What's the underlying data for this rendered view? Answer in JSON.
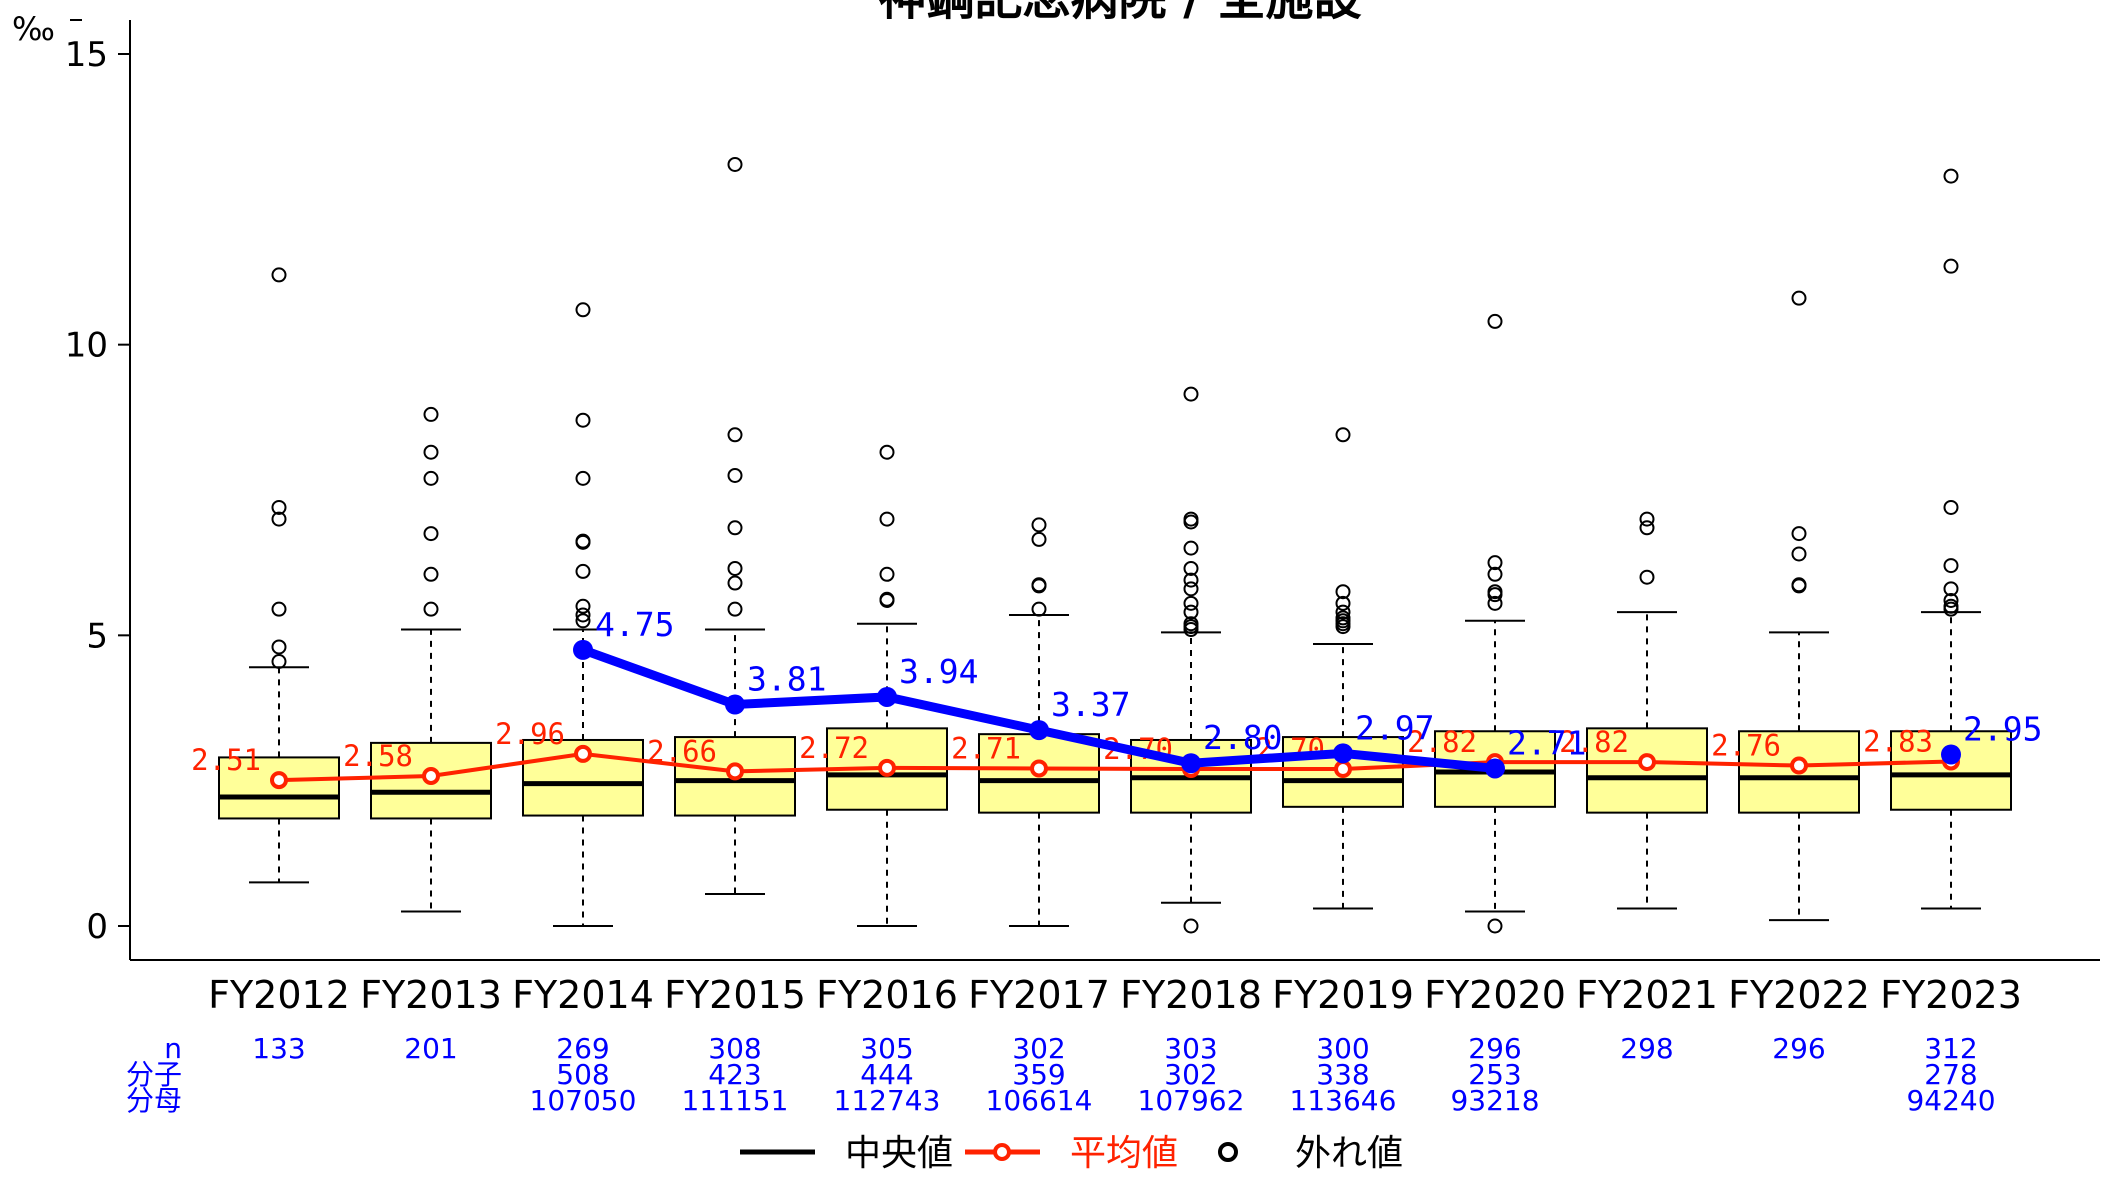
{
  "chart_data": {
    "type": "box",
    "title": "神鋼記念病院 / 全施設",
    "ylabel": "‰",
    "ylim": [
      -0.6,
      15.6
    ],
    "yticks": [
      0,
      5,
      10,
      15
    ],
    "categories": [
      "FY2012",
      "FY2013",
      "FY2014",
      "FY2015",
      "FY2016",
      "FY2017",
      "FY2018",
      "FY2019",
      "FY2020",
      "FY2021",
      "FY2022",
      "FY2023"
    ],
    "boxes": [
      {
        "lw": 0.75,
        "q1": 1.85,
        "med": 2.22,
        "q3": 2.9,
        "uw": 4.45,
        "out": [
          4.55,
          4.8,
          5.45,
          7.0,
          7.2,
          11.2
        ]
      },
      {
        "lw": 0.25,
        "q1": 1.85,
        "med": 2.3,
        "q3": 3.15,
        "uw": 5.1,
        "out": [
          5.45,
          6.05,
          6.75,
          7.7,
          8.15,
          8.8
        ]
      },
      {
        "lw": 0.0,
        "q1": 1.9,
        "med": 2.45,
        "q3": 3.2,
        "uw": 5.1,
        "out": [
          5.25,
          5.35,
          5.5,
          6.1,
          6.6,
          6.62,
          7.7,
          8.7,
          10.6
        ]
      },
      {
        "lw": 0.55,
        "q1": 1.9,
        "med": 2.5,
        "q3": 3.25,
        "uw": 5.1,
        "out": [
          5.45,
          5.9,
          6.15,
          6.85,
          7.75,
          8.45,
          13.1
        ]
      },
      {
        "lw": 0.0,
        "q1": 2.0,
        "med": 2.6,
        "q3": 3.4,
        "uw": 5.2,
        "out": [
          5.6,
          5.62,
          6.05,
          7.0,
          8.15
        ]
      },
      {
        "lw": 0.0,
        "q1": 1.95,
        "med": 2.5,
        "q3": 3.3,
        "uw": 5.35,
        "out": [
          5.45,
          5.85,
          5.87,
          6.65,
          6.9
        ]
      },
      {
        "lw": 0.4,
        "q1": 1.95,
        "med": 2.55,
        "q3": 3.2,
        "uw": 5.05,
        "out": [
          0.0,
          5.1,
          5.15,
          5.2,
          5.4,
          5.55,
          5.8,
          5.95,
          6.15,
          6.5,
          6.95,
          7.0,
          9.15
        ]
      },
      {
        "lw": 0.3,
        "q1": 2.05,
        "med": 2.5,
        "q3": 3.25,
        "uw": 4.85,
        "out": [
          5.15,
          5.2,
          5.25,
          5.3,
          5.4,
          5.55,
          5.75,
          8.45
        ]
      },
      {
        "lw": 0.25,
        "q1": 2.05,
        "med": 2.65,
        "q3": 3.35,
        "uw": 5.25,
        "out": [
          0.0,
          5.55,
          5.7,
          5.75,
          6.05,
          6.25,
          10.4
        ]
      },
      {
        "lw": 0.3,
        "q1": 1.95,
        "med": 2.55,
        "q3": 3.4,
        "uw": 5.4,
        "out": [
          6.0,
          6.85,
          7.0
        ]
      },
      {
        "lw": 0.1,
        "q1": 1.95,
        "med": 2.55,
        "q3": 3.35,
        "uw": 5.05,
        "out": [
          5.85,
          5.87,
          6.4,
          6.75,
          10.8
        ]
      },
      {
        "lw": 0.3,
        "q1": 2.0,
        "med": 2.6,
        "q3": 3.35,
        "uw": 5.4,
        "out": [
          5.45,
          5.5,
          5.6,
          5.8,
          6.2,
          7.2,
          11.35,
          12.9
        ]
      }
    ],
    "series": [
      {
        "name": "平均値",
        "color": "#ff2200",
        "values": [
          2.51,
          2.58,
          2.96,
          2.66,
          2.72,
          2.71,
          2.7,
          2.7,
          2.82,
          2.82,
          2.76,
          2.83
        ],
        "labels": [
          "2.51",
          "2.58",
          "2.96",
          "2.66",
          "2.72",
          "2.71",
          "2.70",
          "2.70",
          "2.82",
          "2.82",
          "2.76",
          "2.83"
        ]
      },
      {
        "name": "",
        "color": "#0000ff",
        "values": [
          null,
          null,
          4.75,
          3.81,
          3.94,
          3.37,
          2.8,
          2.97,
          2.71,
          null,
          null,
          2.95
        ],
        "labels": [
          "",
          "",
          "4.75",
          "3.81",
          "3.94",
          "3.37",
          "2.80",
          "2.97",
          "2.71",
          "",
          "",
          "2.95"
        ]
      }
    ],
    "table": {
      "row_labels": [
        "n",
        "分子",
        "分母"
      ],
      "n": [
        "133",
        "201",
        "269",
        "308",
        "305",
        "302",
        "303",
        "300",
        "296",
        "298",
        "296",
        "312"
      ],
      "num": [
        "",
        "",
        "508",
        "423",
        "444",
        "359",
        "302",
        "338",
        "253",
        "",
        "",
        "278"
      ],
      "den": [
        "",
        "",
        "107050",
        "111151",
        "112743",
        "106614",
        "107962",
        "113646",
        "93218",
        "",
        "",
        "94240"
      ]
    },
    "legend": [
      {
        "label": "中央値",
        "color": "#000000"
      },
      {
        "label": "平均値",
        "color": "#ff2200"
      },
      {
        "label": "外れ値",
        "color": "#000000"
      }
    ],
    "box_fill": "#ffff99",
    "hospital_color": "#0000ff",
    "mean_color": "#ff2200"
  }
}
